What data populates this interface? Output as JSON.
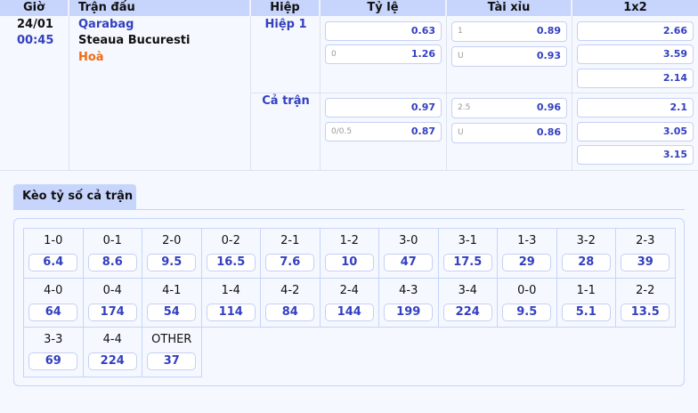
{
  "headers": [
    "Giờ",
    "Trận đấu",
    "Hiệp",
    "Tỷ lệ",
    "Tài xỉu",
    "1x2"
  ],
  "match": {
    "date": "24/01",
    "time": "00:45",
    "home": "Qarabag",
    "away": "Steaua Bucuresti",
    "draw": "Hoà"
  },
  "periods": [
    {
      "label": "Hiệp 1",
      "handicap": [
        {
          "line": "",
          "odds": "0.63"
        },
        {
          "line": "0",
          "odds": "1.26"
        }
      ],
      "overunder": [
        {
          "line": "1",
          "odds": "0.89"
        },
        {
          "line": "U",
          "odds": "0.93"
        }
      ],
      "x12": [
        "2.66",
        "3.59",
        "2.14"
      ]
    },
    {
      "label": "Cả trận",
      "handicap": [
        {
          "line": "",
          "odds": "0.97"
        },
        {
          "line": "0/0.5",
          "odds": "0.87"
        }
      ],
      "overunder": [
        {
          "line": "2.5",
          "odds": "0.96"
        },
        {
          "line": "U",
          "odds": "0.86"
        }
      ],
      "x12": [
        "2.1",
        "3.05",
        "3.15"
      ]
    }
  ],
  "correct_score": {
    "tab": "Kèo tỷ số cả trận",
    "items": [
      {
        "score": "1-0",
        "odds": "6.4"
      },
      {
        "score": "0-1",
        "odds": "8.6"
      },
      {
        "score": "2-0",
        "odds": "9.5"
      },
      {
        "score": "0-2",
        "odds": "16.5"
      },
      {
        "score": "2-1",
        "odds": "7.6"
      },
      {
        "score": "1-2",
        "odds": "10"
      },
      {
        "score": "3-0",
        "odds": "47"
      },
      {
        "score": "3-1",
        "odds": "17.5"
      },
      {
        "score": "1-3",
        "odds": "29"
      },
      {
        "score": "3-2",
        "odds": "28"
      },
      {
        "score": "2-3",
        "odds": "39"
      },
      {
        "score": "4-0",
        "odds": "64"
      },
      {
        "score": "0-4",
        "odds": "174"
      },
      {
        "score": "4-1",
        "odds": "54"
      },
      {
        "score": "1-4",
        "odds": "114"
      },
      {
        "score": "4-2",
        "odds": "84"
      },
      {
        "score": "2-4",
        "odds": "144"
      },
      {
        "score": "4-3",
        "odds": "199"
      },
      {
        "score": "3-4",
        "odds": "224"
      },
      {
        "score": "0-0",
        "odds": "9.5"
      },
      {
        "score": "1-1",
        "odds": "5.1"
      },
      {
        "score": "2-2",
        "odds": "13.5"
      },
      {
        "score": "3-3",
        "odds": "69"
      },
      {
        "score": "4-4",
        "odds": "224"
      },
      {
        "score": "OTHER",
        "odds": "37"
      }
    ]
  }
}
